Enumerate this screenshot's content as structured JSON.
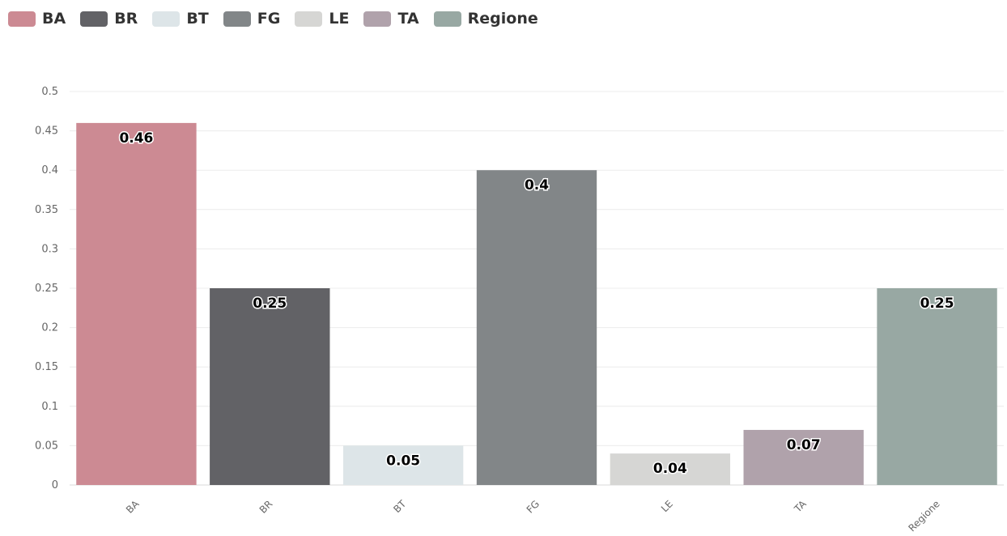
{
  "chart_data": {
    "type": "bar",
    "categories": [
      "BA",
      "BR",
      "BT",
      "FG",
      "LE",
      "TA",
      "Regione"
    ],
    "values": [
      0.46,
      0.25,
      0.05,
      0.4,
      0.04,
      0.07,
      0.25
    ],
    "data_labels": [
      "0.46",
      "0.25",
      "0.05",
      "0.4",
      "0.04",
      "0.07",
      "0.25"
    ],
    "colors": [
      "#cc8a93",
      "#626266",
      "#dde5e8",
      "#828688",
      "#d6d6d4",
      "#b0a2ab",
      "#98a8a3"
    ],
    "y_ticks": [
      0,
      0.05,
      0.1,
      0.15,
      0.2,
      0.25,
      0.3,
      0.35,
      0.4,
      0.45,
      0.5
    ],
    "y_tick_labels": [
      "0",
      "0.05",
      "0.1",
      "0.15",
      "0.2",
      "0.25",
      "0.3",
      "0.35",
      "0.4",
      "0.45",
      "0.5"
    ],
    "ylim": [
      0,
      0.5
    ],
    "title": "",
    "xlabel": "",
    "ylabel": "",
    "grid": true,
    "legend": {
      "placement": "top-left",
      "entries": [
        "BA",
        "BR",
        "BT",
        "FG",
        "LE",
        "TA",
        "Regione"
      ]
    }
  }
}
